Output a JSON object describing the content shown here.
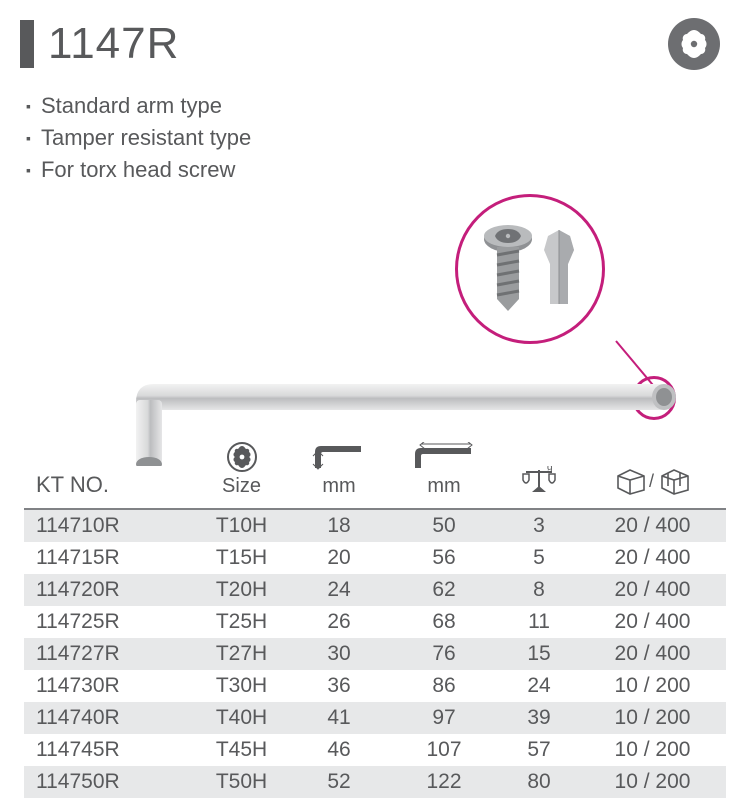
{
  "header": {
    "title": "1147R",
    "title_color": "#58595b",
    "bar_color": "#58595b",
    "icon_bg": "#6d6e71"
  },
  "features": [
    "Standard arm type",
    "Tamper resistant type",
    "For torx head screw"
  ],
  "callout": {
    "border_color": "#c41e7b"
  },
  "table": {
    "columns": {
      "ktno": "KT NO.",
      "size": "Size",
      "short_mm": "mm",
      "long_mm": "mm",
      "weight": "g",
      "pack": ""
    },
    "rows": [
      {
        "ktno": "114710R",
        "size": "T10H",
        "short_mm": "18",
        "long_mm": "50",
        "weight": "3",
        "pack": "20 / 400"
      },
      {
        "ktno": "114715R",
        "size": "T15H",
        "short_mm": "20",
        "long_mm": "56",
        "weight": "5",
        "pack": "20 / 400"
      },
      {
        "ktno": "114720R",
        "size": "T20H",
        "short_mm": "24",
        "long_mm": "62",
        "weight": "8",
        "pack": "20 / 400"
      },
      {
        "ktno": "114725R",
        "size": "T25H",
        "short_mm": "26",
        "long_mm": "68",
        "weight": "11",
        "pack": "20 / 400"
      },
      {
        "ktno": "114727R",
        "size": "T27H",
        "short_mm": "30",
        "long_mm": "76",
        "weight": "15",
        "pack": "20 / 400"
      },
      {
        "ktno": "114730R",
        "size": "T30H",
        "short_mm": "36",
        "long_mm": "86",
        "weight": "24",
        "pack": "10 / 200"
      },
      {
        "ktno": "114740R",
        "size": "T40H",
        "short_mm": "41",
        "long_mm": "97",
        "weight": "39",
        "pack": "10 / 200"
      },
      {
        "ktno": "114745R",
        "size": "T45H",
        "short_mm": "46",
        "long_mm": "107",
        "weight": "57",
        "pack": "10 / 200"
      },
      {
        "ktno": "114750R",
        "size": "T50H",
        "short_mm": "52",
        "long_mm": "122",
        "weight": "80",
        "pack": "10 / 200"
      }
    ],
    "row_odd_bg": "#e7e8e9",
    "row_even_bg": "#ffffff",
    "border_color": "#808285",
    "text_color": "#58595b"
  }
}
